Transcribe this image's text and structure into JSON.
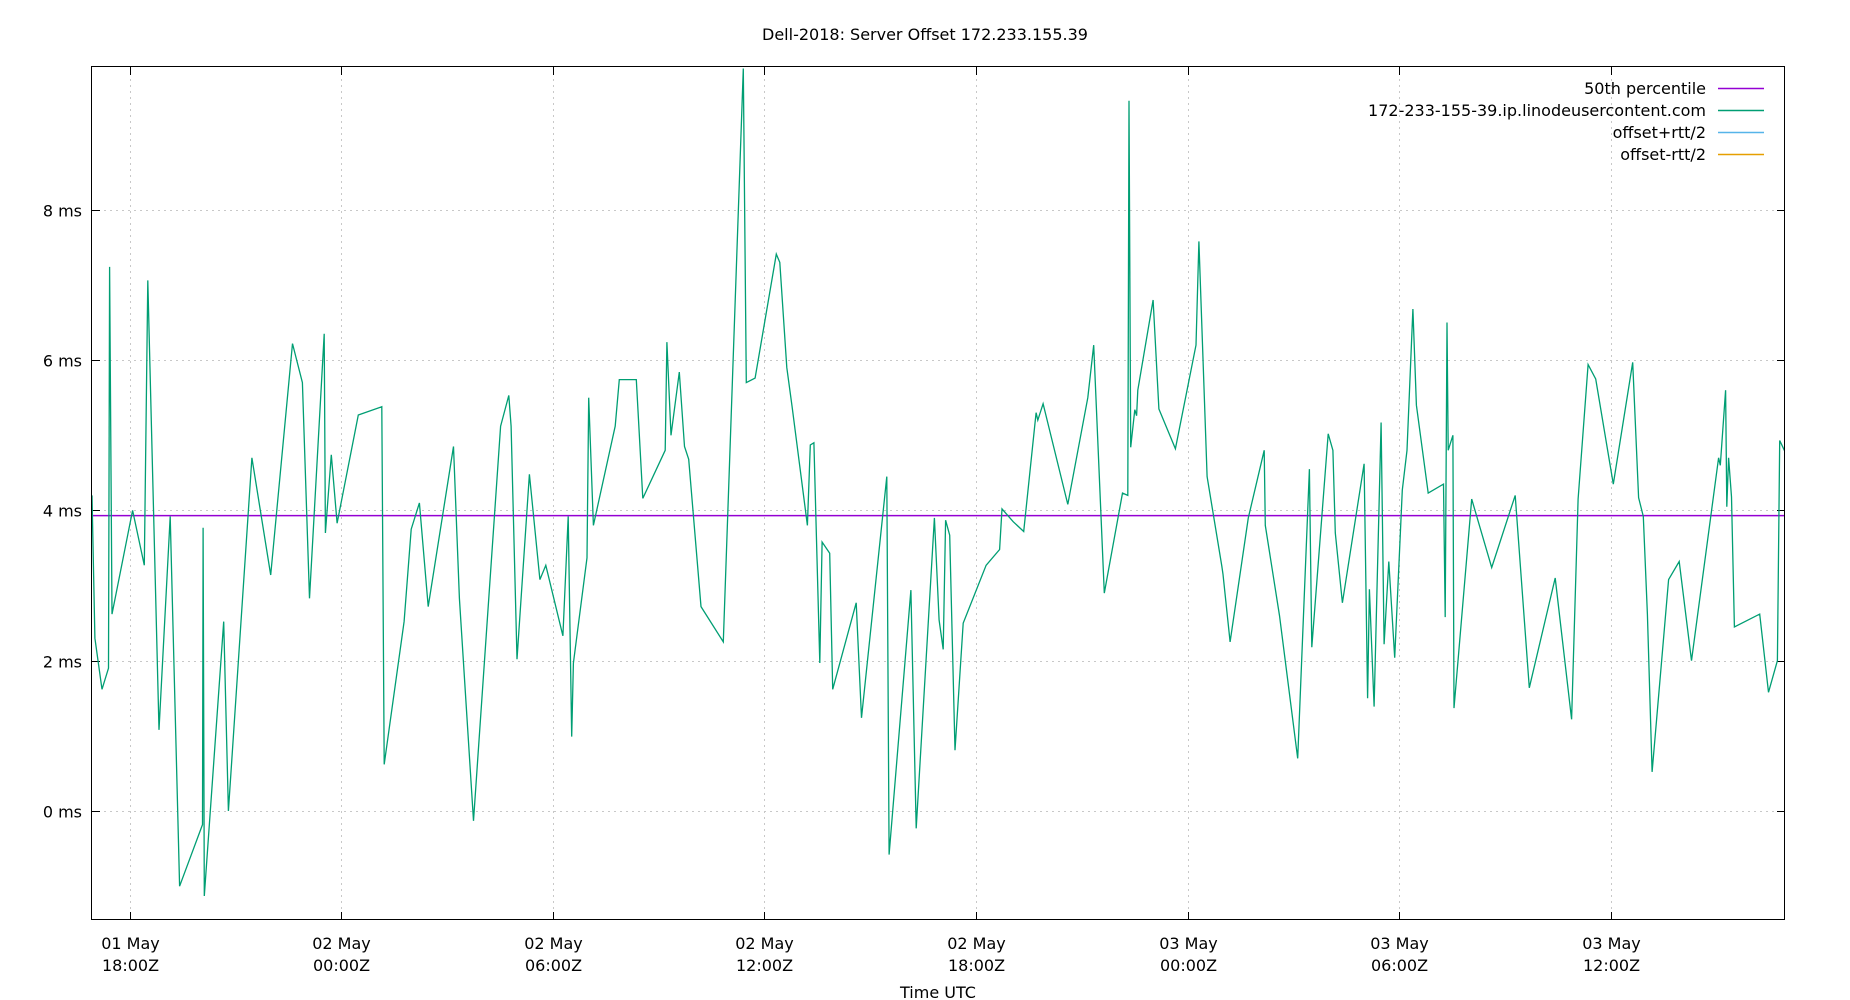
{
  "chart_data": {
    "type": "line",
    "title": "Dell-2018: Server Offset 172.233.155.39",
    "xlabel": "Time UTC",
    "ylabel": "",
    "y_unit": "ms",
    "ylim": [
      -1.45,
      9.9
    ],
    "yticks": [
      0,
      2,
      4,
      6,
      8
    ],
    "ytick_labels": [
      "0 ms",
      "2 ms",
      "4 ms",
      "6 ms",
      "8 ms"
    ],
    "xlim": [
      "2024-05-01T16:56Z",
      "2024-05-03T16:56Z"
    ],
    "xticks": [
      "2024-05-01T18:00Z",
      "2024-05-02T00:00Z",
      "2024-05-02T06:00Z",
      "2024-05-02T12:00Z",
      "2024-05-02T18:00Z",
      "2024-05-03T00:00Z",
      "2024-05-03T06:00Z",
      "2024-05-03T12:00Z"
    ],
    "xtick_labels": [
      [
        "01 May",
        "18:00Z"
      ],
      [
        "02 May",
        "00:00Z"
      ],
      [
        "02 May",
        "06:00Z"
      ],
      [
        "02 May",
        "12:00Z"
      ],
      [
        "02 May",
        "18:00Z"
      ],
      [
        "03 May",
        "00:00Z"
      ],
      [
        "03 May",
        "06:00Z"
      ],
      [
        "03 May",
        "12:00Z"
      ]
    ],
    "grid": true,
    "legend_position": "top-right",
    "series": [
      {
        "name": "50th percentile",
        "color": "#9400d3",
        "constant": 3.93
      },
      {
        "name": "172-233-155-39.ip.linodeusercontent.com",
        "color": "#009e73",
        "points": [
          [
            "2024-05-01T16:56Z",
            4.2
          ],
          [
            "2024-05-01T17:01Z",
            2.3
          ],
          [
            "2024-05-01T17:13Z",
            1.62
          ],
          [
            "2024-05-01T17:24Z",
            1.9
          ],
          [
            "2024-05-01T17:26Z",
            7.24
          ],
          [
            "2024-05-01T17:30Z",
            2.62
          ],
          [
            "2024-05-01T18:05Z",
            4.0
          ],
          [
            "2024-05-01T18:25Z",
            3.27
          ],
          [
            "2024-05-01T18:31Z",
            7.06
          ],
          [
            "2024-05-01T18:50Z",
            1.08
          ],
          [
            "2024-05-01T19:09Z",
            3.92
          ],
          [
            "2024-05-01T19:25Z",
            -1.0
          ],
          [
            "2024-05-01T20:04Z",
            -0.18
          ],
          [
            "2024-05-01T20:05Z",
            3.77
          ],
          [
            "2024-05-01T20:07Z",
            -1.13
          ],
          [
            "2024-05-01T20:40Z",
            2.52
          ],
          [
            "2024-05-01T20:48Z",
            0.0
          ],
          [
            "2024-05-01T21:28Z",
            4.7
          ],
          [
            "2024-05-01T22:00Z",
            3.14
          ],
          [
            "2024-05-01T22:37Z",
            6.22
          ],
          [
            "2024-05-01T22:54Z",
            5.7
          ],
          [
            "2024-05-01T23:06Z",
            2.83
          ],
          [
            "2024-05-01T23:31Z",
            6.35
          ],
          [
            "2024-05-01T23:33Z",
            3.7
          ],
          [
            "2024-05-01T23:43Z",
            4.74
          ],
          [
            "2024-05-01T23:53Z",
            3.83
          ],
          [
            "2024-05-02T00:29Z",
            5.27
          ],
          [
            "2024-05-02T01:09Z",
            5.38
          ],
          [
            "2024-05-02T01:13Z",
            0.62
          ],
          [
            "2024-05-02T01:47Z",
            2.52
          ],
          [
            "2024-05-02T01:59Z",
            3.75
          ],
          [
            "2024-05-02T02:13Z",
            4.1
          ],
          [
            "2024-05-02T02:28Z",
            2.72
          ],
          [
            "2024-05-02T03:11Z",
            4.85
          ],
          [
            "2024-05-02T03:21Z",
            2.83
          ],
          [
            "2024-05-02T03:45Z",
            -0.13
          ],
          [
            "2024-05-02T04:31Z",
            5.12
          ],
          [
            "2024-05-02T04:45Z",
            5.53
          ],
          [
            "2024-05-02T04:49Z",
            5.12
          ],
          [
            "2024-05-02T04:59Z",
            2.02
          ],
          [
            "2024-05-02T05:20Z",
            4.48
          ],
          [
            "2024-05-02T05:38Z",
            3.08
          ],
          [
            "2024-05-02T05:48Z",
            3.27
          ],
          [
            "2024-05-02T06:17Z",
            2.33
          ],
          [
            "2024-05-02T06:26Z",
            3.92
          ],
          [
            "2024-05-02T06:32Z",
            0.99
          ],
          [
            "2024-05-02T06:35Z",
            1.97
          ],
          [
            "2024-05-02T06:58Z",
            3.37
          ],
          [
            "2024-05-02T07:01Z",
            5.5
          ],
          [
            "2024-05-02T07:09Z",
            3.8
          ],
          [
            "2024-05-02T07:46Z",
            5.12
          ],
          [
            "2024-05-02T07:53Z",
            5.74
          ],
          [
            "2024-05-02T08:22Z",
            5.74
          ],
          [
            "2024-05-02T08:33Z",
            4.16
          ],
          [
            "2024-05-02T09:11Z",
            4.8
          ],
          [
            "2024-05-02T09:14Z",
            6.24
          ],
          [
            "2024-05-02T09:21Z",
            5.0
          ],
          [
            "2024-05-02T09:35Z",
            5.84
          ],
          [
            "2024-05-02T09:44Z",
            4.85
          ],
          [
            "2024-05-02T09:51Z",
            4.68
          ],
          [
            "2024-05-02T10:12Z",
            2.72
          ],
          [
            "2024-05-02T10:50Z",
            2.25
          ],
          [
            "2024-05-02T11:24Z",
            9.88
          ],
          [
            "2024-05-02T11:29Z",
            5.7
          ],
          [
            "2024-05-02T11:44Z",
            5.76
          ],
          [
            "2024-05-02T12:20Z",
            7.41
          ],
          [
            "2024-05-02T12:26Z",
            7.3
          ],
          [
            "2024-05-02T12:38Z",
            5.9
          ],
          [
            "2024-05-02T12:47Z",
            5.38
          ],
          [
            "2024-05-02T13:13Z",
            3.8
          ],
          [
            "2024-05-02T13:18Z",
            4.87
          ],
          [
            "2024-05-02T13:24Z",
            4.9
          ],
          [
            "2024-05-02T13:34Z",
            1.97
          ],
          [
            "2024-05-02T13:38Z",
            3.58
          ],
          [
            "2024-05-02T13:51Z",
            3.43
          ],
          [
            "2024-05-02T13:56Z",
            1.62
          ],
          [
            "2024-05-02T14:36Z",
            2.77
          ],
          [
            "2024-05-02T14:45Z",
            1.24
          ],
          [
            "2024-05-02T15:28Z",
            4.45
          ],
          [
            "2024-05-02T15:32Z",
            -0.58
          ],
          [
            "2024-05-02T16:09Z",
            2.94
          ],
          [
            "2024-05-02T16:18Z",
            -0.23
          ],
          [
            "2024-05-02T16:49Z",
            3.9
          ],
          [
            "2024-05-02T16:57Z",
            2.54
          ],
          [
            "2024-05-02T17:04Z",
            2.15
          ],
          [
            "2024-05-02T17:08Z",
            3.87
          ],
          [
            "2024-05-02T17:15Z",
            3.67
          ],
          [
            "2024-05-02T17:24Z",
            0.81
          ],
          [
            "2024-05-02T17:38Z",
            2.5
          ],
          [
            "2024-05-02T18:17Z",
            3.27
          ],
          [
            "2024-05-02T18:40Z",
            3.48
          ],
          [
            "2024-05-02T18:44Z",
            4.02
          ],
          [
            "2024-05-02T19:03Z",
            3.85
          ],
          [
            "2024-05-02T19:21Z",
            3.72
          ],
          [
            "2024-05-02T19:42Z",
            5.3
          ],
          [
            "2024-05-02T19:45Z",
            5.2
          ],
          [
            "2024-05-02T19:54Z",
            5.42
          ],
          [
            "2024-05-02T20:36Z",
            4.08
          ],
          [
            "2024-05-02T21:10Z",
            5.5
          ],
          [
            "2024-05-02T21:20Z",
            6.2
          ],
          [
            "2024-05-02T21:38Z",
            2.9
          ],
          [
            "2024-05-02T22:09Z",
            4.23
          ],
          [
            "2024-05-02T22:18Z",
            4.2
          ],
          [
            "2024-05-02T22:20Z",
            9.45
          ],
          [
            "2024-05-02T22:23Z",
            4.84
          ],
          [
            "2024-05-02T22:30Z",
            5.34
          ],
          [
            "2024-05-02T22:33Z",
            5.26
          ],
          [
            "2024-05-02T22:35Z",
            5.6
          ],
          [
            "2024-05-02T23:01Z",
            6.8
          ],
          [
            "2024-05-02T23:11Z",
            5.35
          ],
          [
            "2024-05-02T23:39Z",
            4.82
          ],
          [
            "2024-05-03T00:14Z",
            6.2
          ],
          [
            "2024-05-03T00:19Z",
            7.58
          ],
          [
            "2024-05-03T00:33Z",
            4.45
          ],
          [
            "2024-05-03T00:58Z",
            3.26
          ],
          [
            "2024-05-03T01:00Z",
            3.15
          ],
          [
            "2024-05-03T01:12Z",
            2.25
          ],
          [
            "2024-05-03T01:43Z",
            3.9
          ],
          [
            "2024-05-03T02:10Z",
            4.8
          ],
          [
            "2024-05-03T02:12Z",
            3.8
          ],
          [
            "2024-05-03T02:36Z",
            2.6
          ],
          [
            "2024-05-03T03:07Z",
            0.7
          ],
          [
            "2024-05-03T03:27Z",
            4.55
          ],
          [
            "2024-05-03T03:31Z",
            2.18
          ],
          [
            "2024-05-03T03:59Z",
            5.02
          ],
          [
            "2024-05-03T04:07Z",
            4.8
          ],
          [
            "2024-05-03T04:11Z",
            3.7
          ],
          [
            "2024-05-03T04:23Z",
            2.77
          ],
          [
            "2024-05-03T05:00Z",
            4.62
          ],
          [
            "2024-05-03T05:06Z",
            1.5
          ],
          [
            "2024-05-03T05:09Z",
            2.95
          ],
          [
            "2024-05-03T05:17Z",
            1.39
          ],
          [
            "2024-05-03T05:29Z",
            5.17
          ],
          [
            "2024-05-03T05:34Z",
            2.22
          ],
          [
            "2024-05-03T05:42Z",
            3.32
          ],
          [
            "2024-05-03T05:52Z",
            2.04
          ],
          [
            "2024-05-03T06:05Z",
            4.27
          ],
          [
            "2024-05-03T06:13Z",
            4.8
          ],
          [
            "2024-05-03T06:23Z",
            6.68
          ],
          [
            "2024-05-03T06:29Z",
            5.4
          ],
          [
            "2024-05-03T06:49Z",
            4.23
          ],
          [
            "2024-05-03T07:15Z",
            4.35
          ],
          [
            "2024-05-03T07:18Z",
            2.58
          ],
          [
            "2024-05-03T07:21Z",
            6.5
          ],
          [
            "2024-05-03T07:23Z",
            4.8
          ],
          [
            "2024-05-03T07:31Z",
            5.0
          ],
          [
            "2024-05-03T07:33Z",
            1.37
          ],
          [
            "2024-05-03T08:03Z",
            4.15
          ],
          [
            "2024-05-03T08:37Z",
            3.24
          ],
          [
            "2024-05-03T09:17Z",
            4.2
          ],
          [
            "2024-05-03T09:41Z",
            1.64
          ],
          [
            "2024-05-03T10:25Z",
            3.1
          ],
          [
            "2024-05-03T10:53Z",
            1.22
          ],
          [
            "2024-05-03T11:04Z",
            4.15
          ],
          [
            "2024-05-03T11:21Z",
            5.94
          ],
          [
            "2024-05-03T11:34Z",
            5.75
          ],
          [
            "2024-05-03T12:04Z",
            4.35
          ],
          [
            "2024-05-03T12:37Z",
            5.97
          ],
          [
            "2024-05-03T12:47Z",
            4.17
          ],
          [
            "2024-05-03T12:55Z",
            3.92
          ],
          [
            "2024-05-03T13:02Z",
            2.62
          ],
          [
            "2024-05-03T13:10Z",
            0.52
          ],
          [
            "2024-05-03T13:38Z",
            3.08
          ],
          [
            "2024-05-03T13:56Z",
            3.32
          ],
          [
            "2024-05-03T14:17Z",
            2.0
          ],
          [
            "2024-05-03T15:03Z",
            4.7
          ],
          [
            "2024-05-03T15:06Z",
            4.6
          ],
          [
            "2024-05-03T15:15Z",
            5.6
          ],
          [
            "2024-05-03T15:17Z",
            4.05
          ],
          [
            "2024-05-03T15:20Z",
            4.7
          ],
          [
            "2024-05-03T15:25Z",
            4.18
          ],
          [
            "2024-05-03T15:30Z",
            2.45
          ],
          [
            "2024-05-03T16:13Z",
            2.62
          ],
          [
            "2024-05-03T16:28Z",
            1.58
          ],
          [
            "2024-05-03T16:43Z",
            2.0
          ],
          [
            "2024-05-03T16:47Z",
            4.93
          ],
          [
            "2024-05-03T17:13Z",
            4.5
          ],
          [
            "2024-05-03T17:20Z",
            4.62
          ],
          [
            "2024-05-03T17:27Z",
            3.48
          ],
          [
            "2024-05-03T17:33Z",
            3.5
          ],
          [
            "2024-05-03T17:46Z",
            2.8
          ]
        ]
      },
      {
        "name": "offset+rtt/2",
        "color": "#56b4e9",
        "points": []
      },
      {
        "name": "offset-rtt/2",
        "color": "#e69f00",
        "points": []
      }
    ]
  }
}
